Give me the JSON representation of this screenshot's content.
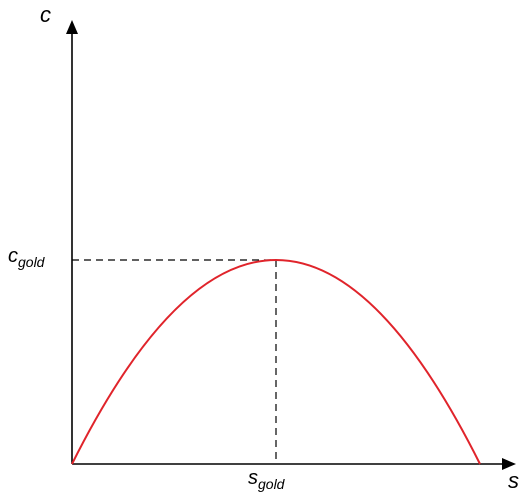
{
  "chart_data": {
    "type": "line",
    "title": "",
    "xlabel": "s",
    "ylabel": "c",
    "xlim": [
      0,
      1
    ],
    "ylim": [
      0,
      1
    ],
    "grid": false,
    "legend": "none",
    "series": [
      {
        "shape": "inverted-parabola",
        "x": [
          0,
          0.125,
          0.25,
          0.375,
          0.5,
          0.625,
          0.75,
          0.875,
          1
        ],
        "y": [
          0,
          0.4375,
          0.75,
          0.9375,
          1,
          0.9375,
          0.75,
          0.4375,
          0
        ],
        "color": "#e0242b"
      }
    ],
    "annotations": {
      "x_point": {
        "value": 0.5,
        "base": "s",
        "subscript": "gold"
      },
      "y_point": {
        "value": 1,
        "base": "c",
        "subscript": "gold"
      },
      "dashed_guides": true
    }
  }
}
